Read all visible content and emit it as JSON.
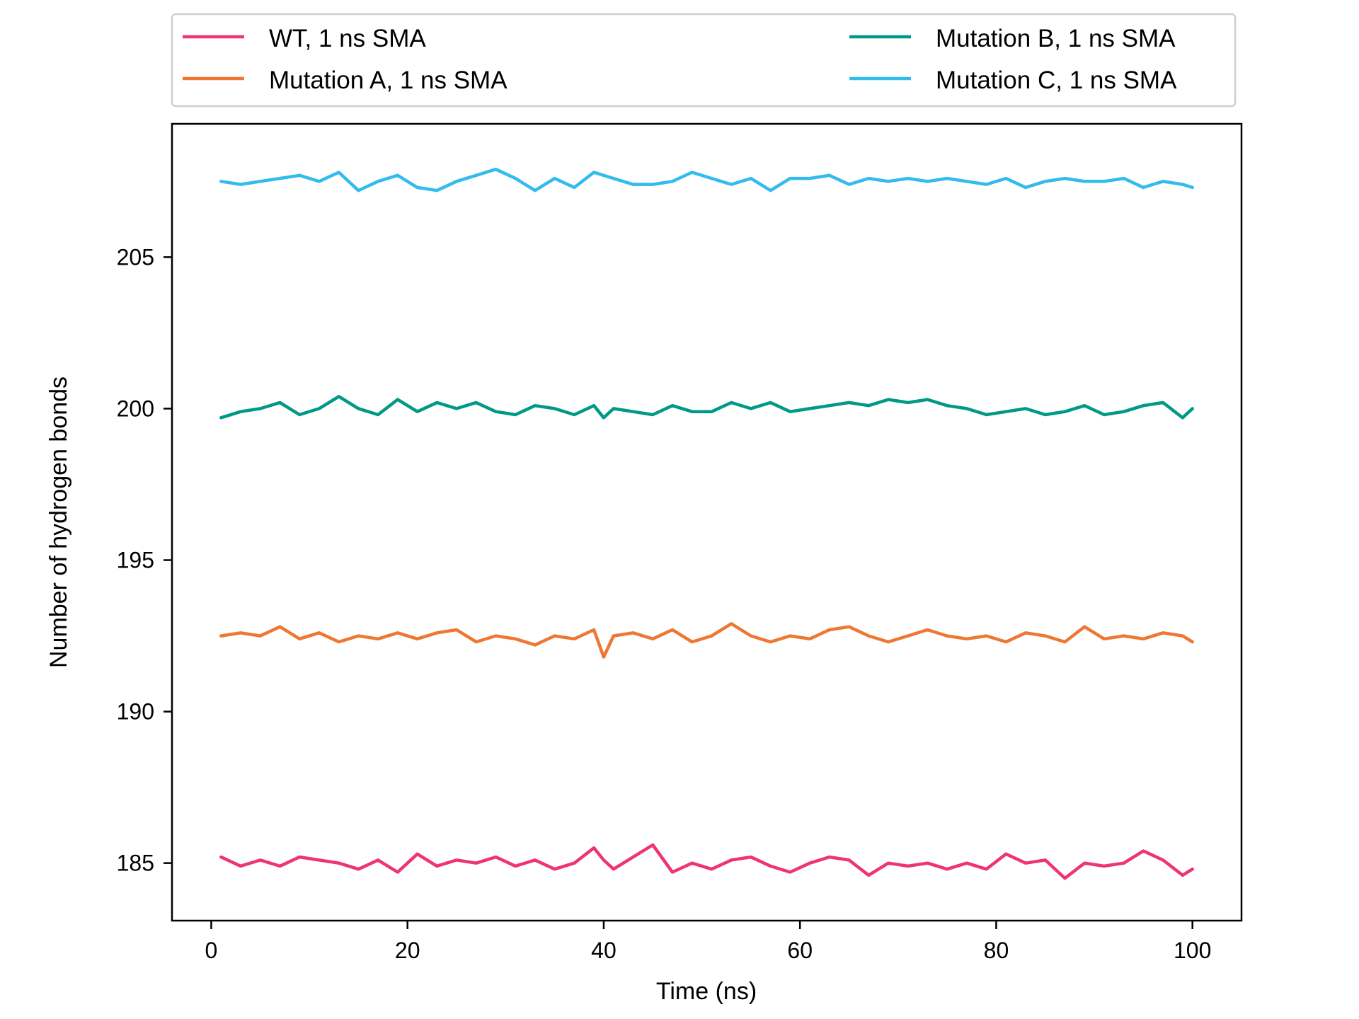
{
  "chart_data": {
    "type": "line",
    "xlabel": "Time (ns)",
    "ylabel": "Number of hydrogen bonds",
    "xlim": [
      -4,
      105
    ],
    "ylim": [
      183.1,
      209.4
    ],
    "xticks": [
      0,
      20,
      40,
      60,
      80,
      100
    ],
    "yticks": [
      185,
      190,
      195,
      200,
      205
    ],
    "grid": false,
    "legend": {
      "placement": "top-outside",
      "columns": 2
    },
    "x": [
      1,
      3,
      5,
      7,
      9,
      11,
      13,
      15,
      17,
      19,
      21,
      23,
      25,
      27,
      29,
      31,
      33,
      35,
      37,
      39,
      40,
      41,
      43,
      45,
      47,
      49,
      51,
      53,
      55,
      57,
      59,
      61,
      63,
      65,
      67,
      69,
      71,
      73,
      75,
      77,
      79,
      81,
      83,
      85,
      87,
      89,
      91,
      93,
      95,
      97,
      99,
      100
    ],
    "series": [
      {
        "name": "WT, 1 ns SMA",
        "color": "#EE3377",
        "values": [
          185.2,
          184.9,
          185.1,
          184.9,
          185.2,
          185.1,
          185.0,
          184.8,
          185.1,
          184.7,
          185.3,
          184.9,
          185.1,
          185.0,
          185.2,
          184.9,
          185.1,
          184.8,
          185.0,
          185.5,
          185.1,
          184.8,
          185.2,
          185.6,
          184.7,
          185.0,
          184.8,
          185.1,
          185.2,
          184.9,
          184.7,
          185.0,
          185.2,
          185.1,
          184.6,
          185.0,
          184.9,
          185.0,
          184.8,
          185.0,
          184.8,
          185.3,
          185.0,
          185.1,
          184.5,
          185.0,
          184.9,
          185.0,
          185.4,
          185.1,
          184.6,
          184.8
        ]
      },
      {
        "name": "Mutation A, 1 ns SMA",
        "color": "#EE7733",
        "values": [
          192.5,
          192.6,
          192.5,
          192.8,
          192.4,
          192.6,
          192.3,
          192.5,
          192.4,
          192.6,
          192.4,
          192.6,
          192.7,
          192.3,
          192.5,
          192.4,
          192.2,
          192.5,
          192.4,
          192.7,
          191.8,
          192.5,
          192.6,
          192.4,
          192.7,
          192.3,
          192.5,
          192.9,
          192.5,
          192.3,
          192.5,
          192.4,
          192.7,
          192.8,
          192.5,
          192.3,
          192.5,
          192.7,
          192.5,
          192.4,
          192.5,
          192.3,
          192.6,
          192.5,
          192.3,
          192.8,
          192.4,
          192.5,
          192.4,
          192.6,
          192.5,
          192.3
        ]
      },
      {
        "name": "Mutation B, 1 ns SMA",
        "color": "#009988",
        "values": [
          199.7,
          199.9,
          200.0,
          200.2,
          199.8,
          200.0,
          200.4,
          200.0,
          199.8,
          200.3,
          199.9,
          200.2,
          200.0,
          200.2,
          199.9,
          199.8,
          200.1,
          200.0,
          199.8,
          200.1,
          199.7,
          200.0,
          199.9,
          199.8,
          200.1,
          199.9,
          199.9,
          200.2,
          200.0,
          200.2,
          199.9,
          200.0,
          200.1,
          200.2,
          200.1,
          200.3,
          200.2,
          200.3,
          200.1,
          200.0,
          199.8,
          199.9,
          200.0,
          199.8,
          199.9,
          200.1,
          199.8,
          199.9,
          200.1,
          200.2,
          199.7,
          200.0
        ]
      },
      {
        "name": "Mutation C, 1 ns SMA",
        "color": "#33BBEE",
        "values": [
          207.5,
          207.4,
          207.5,
          207.6,
          207.7,
          207.5,
          207.8,
          207.2,
          207.5,
          207.7,
          207.3,
          207.2,
          207.5,
          207.7,
          207.9,
          207.6,
          207.2,
          207.6,
          207.3,
          207.8,
          207.7,
          207.6,
          207.4,
          207.4,
          207.5,
          207.8,
          207.6,
          207.4,
          207.6,
          207.2,
          207.6,
          207.6,
          207.7,
          207.4,
          207.6,
          207.5,
          207.6,
          207.5,
          207.6,
          207.5,
          207.4,
          207.6,
          207.3,
          207.5,
          207.6,
          207.5,
          207.5,
          207.6,
          207.3,
          207.5,
          207.4,
          207.3
        ]
      }
    ]
  }
}
